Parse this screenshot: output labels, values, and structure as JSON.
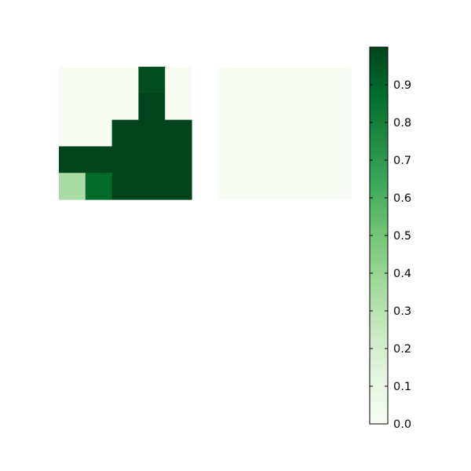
{
  "chart_data": [
    {
      "type": "heatmap",
      "title": "",
      "xlabel": "",
      "ylabel": "",
      "rows": 5,
      "cols": 5,
      "values": [
        [
          0.0,
          0.0,
          0.0,
          0.97,
          0.0
        ],
        [
          0.0,
          0.0,
          0.0,
          1.0,
          0.0
        ],
        [
          0.0,
          0.0,
          1.0,
          1.0,
          1.0
        ],
        [
          1.0,
          1.0,
          1.0,
          1.0,
          1.0
        ],
        [
          0.35,
          0.88,
          1.0,
          1.0,
          1.0
        ]
      ],
      "axes_visible": false
    },
    {
      "type": "heatmap",
      "title": "",
      "xlabel": "",
      "ylabel": "",
      "rows": 5,
      "cols": 5,
      "values": [
        [
          0.0,
          0.0,
          0.0,
          0.0,
          0.0
        ],
        [
          0.0,
          0.0,
          0.0,
          0.0,
          0.0
        ],
        [
          0.0,
          0.0,
          0.0,
          0.0,
          0.0
        ],
        [
          0.0,
          0.0,
          0.0,
          0.0,
          0.0
        ],
        [
          0.0,
          0.0,
          0.0,
          0.0,
          0.0
        ]
      ],
      "axes_visible": false
    }
  ],
  "colorbar": {
    "colormap": "Greens",
    "range": [
      0,
      1
    ],
    "ticks": [
      "0.0",
      "0.1",
      "0.2",
      "0.3",
      "0.4",
      "0.5",
      "0.6",
      "0.7",
      "0.8",
      "0.9"
    ],
    "tick_values": [
      0.0,
      0.1,
      0.2,
      0.3,
      0.4,
      0.5,
      0.6,
      0.7,
      0.8,
      0.9
    ],
    "color_low": "#f7fcf5",
    "color_high": "#00441b"
  }
}
